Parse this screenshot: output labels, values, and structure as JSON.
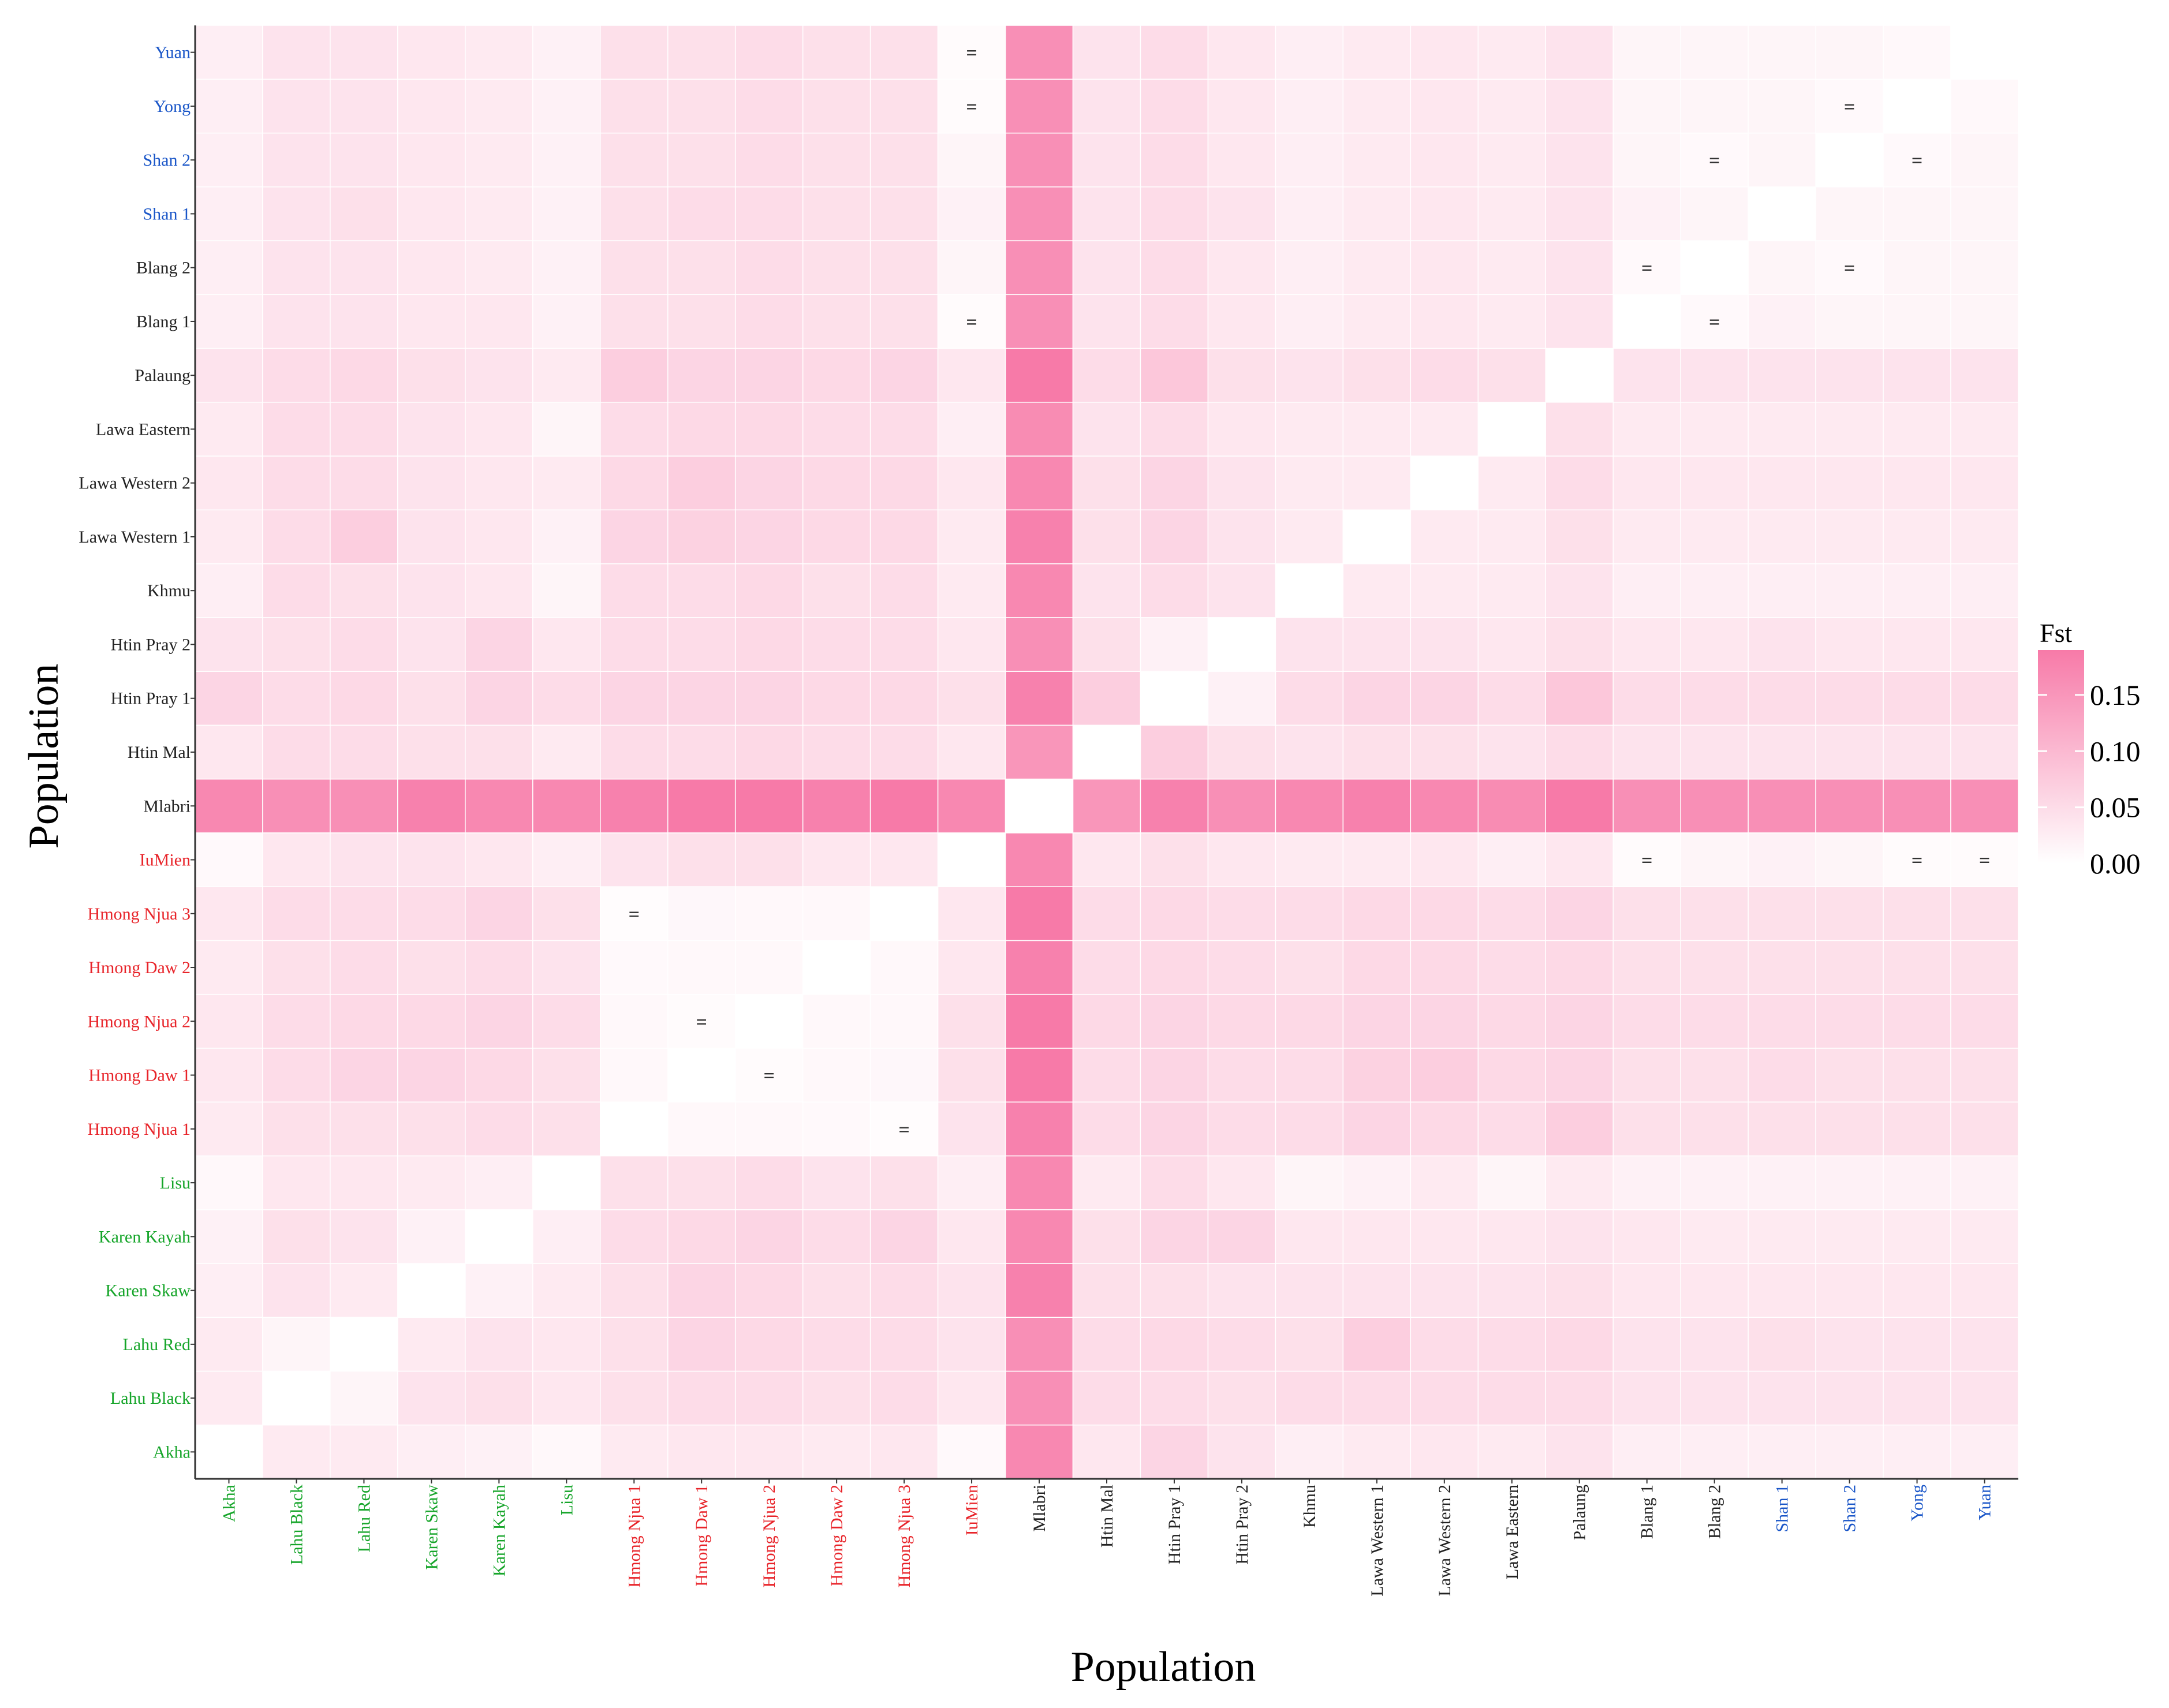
{
  "chart_data": {
    "type": "heatmap",
    "title": "",
    "xlabel": "Population",
    "ylabel": "Population",
    "populations": [
      "Akha",
      "Lahu Black",
      "Lahu Red",
      "Karen Skaw",
      "Karen Kayah",
      "Lisu",
      "Hmong Njua 1",
      "Hmong Daw 1",
      "Hmong Njua 2",
      "Hmong Daw 2",
      "Hmong Njua 3",
      "IuMien",
      "Mlabri",
      "Htin Mal",
      "Htin Pray 1",
      "Htin Pray 2",
      "Khmu",
      "Lawa Western 1",
      "Lawa Western 2",
      "Lawa Eastern",
      "Palaung",
      "Blang 1",
      "Blang 2",
      "Shan 1",
      "Shan 2",
      "Yong",
      "Yuan"
    ],
    "population_groups": [
      "green",
      "green",
      "green",
      "green",
      "green",
      "green",
      "red",
      "red",
      "red",
      "red",
      "red",
      "red",
      "black",
      "black",
      "black",
      "black",
      "black",
      "black",
      "black",
      "black",
      "black",
      "black",
      "black",
      "blue",
      "blue",
      "blue",
      "blue"
    ],
    "group_colors": {
      "green": "#16a52a",
      "red": "#e8242a",
      "black": "#222222",
      "blue": "#1a56c8"
    },
    "colorscale": {
      "low": "#ffffff",
      "high": "#f77aa8",
      "range": [
        0,
        0.19
      ]
    },
    "legend": {
      "title": "Fst",
      "ticks": [
        "0.15",
        "0.10",
        "0.05",
        "0.00"
      ],
      "tick_values": [
        0.15,
        0.1,
        0.05,
        0.0
      ]
    },
    "equal_marker": "=",
    "equal_pairs": [
      [
        "Hmong Njua 1",
        "Hmong Njua 3"
      ],
      [
        "Hmong Daw 1",
        "Hmong Njua 2"
      ],
      [
        "Hmong Njua 2",
        "Hmong Daw 1"
      ],
      [
        "Hmong Njua 3",
        "Hmong Njua 1"
      ],
      [
        "IuMien",
        "Yuan"
      ],
      [
        "IuMien",
        "Yong"
      ],
      [
        "IuMien",
        "Blang 1"
      ],
      [
        "Blang 1",
        "Blang 2"
      ],
      [
        "Blang 1",
        "IuMien"
      ],
      [
        "Blang 2",
        "Shan 2"
      ],
      [
        "Blang 2",
        "Blang 1"
      ],
      [
        "Shan 2",
        "Yong"
      ],
      [
        "Shan 2",
        "Blang 2"
      ],
      [
        "Yong",
        "Shan 2"
      ],
      [
        "Yong",
        "IuMien"
      ],
      [
        "Yuan",
        "IuMien"
      ]
    ],
    "matrix": [
      [
        0.0,
        0.03,
        0.03,
        0.025,
        0.02,
        0.01,
        0.03,
        0.035,
        0.035,
        0.03,
        0.035,
        0.008,
        0.17,
        0.035,
        0.06,
        0.04,
        0.025,
        0.03,
        0.035,
        0.03,
        0.04,
        0.025,
        0.025,
        0.025,
        0.025,
        0.025,
        0.025
      ],
      [
        0.03,
        0.0,
        0.015,
        0.04,
        0.045,
        0.035,
        0.045,
        0.05,
        0.05,
        0.045,
        0.05,
        0.035,
        0.16,
        0.05,
        0.05,
        0.045,
        0.05,
        0.05,
        0.05,
        0.05,
        0.05,
        0.04,
        0.04,
        0.04,
        0.04,
        0.04,
        0.04
      ],
      [
        0.03,
        0.015,
        0.0,
        0.03,
        0.04,
        0.035,
        0.045,
        0.06,
        0.055,
        0.05,
        0.05,
        0.04,
        0.16,
        0.05,
        0.055,
        0.05,
        0.045,
        0.07,
        0.05,
        0.05,
        0.055,
        0.04,
        0.04,
        0.045,
        0.04,
        0.04,
        0.04
      ],
      [
        0.025,
        0.04,
        0.03,
        0.0,
        0.02,
        0.03,
        0.045,
        0.06,
        0.055,
        0.045,
        0.05,
        0.04,
        0.18,
        0.045,
        0.045,
        0.04,
        0.04,
        0.04,
        0.04,
        0.04,
        0.045,
        0.035,
        0.035,
        0.035,
        0.035,
        0.035,
        0.035
      ],
      [
        0.02,
        0.045,
        0.04,
        0.02,
        0.0,
        0.025,
        0.05,
        0.055,
        0.06,
        0.05,
        0.06,
        0.035,
        0.17,
        0.045,
        0.06,
        0.06,
        0.035,
        0.035,
        0.035,
        0.035,
        0.04,
        0.035,
        0.03,
        0.03,
        0.03,
        0.03,
        0.03
      ],
      [
        0.01,
        0.035,
        0.035,
        0.03,
        0.025,
        0.0,
        0.045,
        0.045,
        0.05,
        0.04,
        0.045,
        0.025,
        0.17,
        0.03,
        0.05,
        0.035,
        0.015,
        0.02,
        0.03,
        0.015,
        0.03,
        0.02,
        0.02,
        0.02,
        0.02,
        0.02,
        0.02
      ],
      [
        0.03,
        0.045,
        0.045,
        0.045,
        0.05,
        0.045,
        0.0,
        0.01,
        0.01,
        0.008,
        0.005,
        0.04,
        0.18,
        0.05,
        0.06,
        0.05,
        0.05,
        0.06,
        0.055,
        0.05,
        0.07,
        0.045,
        0.045,
        0.045,
        0.045,
        0.045,
        0.045
      ],
      [
        0.035,
        0.05,
        0.06,
        0.06,
        0.055,
        0.045,
        0.01,
        0.0,
        0.006,
        0.01,
        0.012,
        0.045,
        0.19,
        0.05,
        0.06,
        0.05,
        0.05,
        0.065,
        0.07,
        0.055,
        0.06,
        0.045,
        0.045,
        0.05,
        0.045,
        0.045,
        0.045
      ],
      [
        0.035,
        0.05,
        0.055,
        0.055,
        0.06,
        0.05,
        0.01,
        0.006,
        0.0,
        0.01,
        0.01,
        0.045,
        0.19,
        0.055,
        0.06,
        0.055,
        0.055,
        0.06,
        0.06,
        0.055,
        0.06,
        0.05,
        0.05,
        0.05,
        0.05,
        0.05,
        0.05
      ],
      [
        0.03,
        0.045,
        0.05,
        0.045,
        0.05,
        0.04,
        0.008,
        0.01,
        0.01,
        0.0,
        0.01,
        0.035,
        0.18,
        0.05,
        0.055,
        0.05,
        0.045,
        0.055,
        0.055,
        0.05,
        0.055,
        0.045,
        0.045,
        0.045,
        0.045,
        0.045,
        0.045
      ],
      [
        0.035,
        0.05,
        0.05,
        0.05,
        0.06,
        0.045,
        0.005,
        0.012,
        0.01,
        0.01,
        0.0,
        0.035,
        0.19,
        0.05,
        0.055,
        0.05,
        0.05,
        0.055,
        0.055,
        0.05,
        0.06,
        0.045,
        0.045,
        0.045,
        0.045,
        0.045,
        0.045
      ],
      [
        0.008,
        0.035,
        0.04,
        0.04,
        0.035,
        0.025,
        0.04,
        0.045,
        0.045,
        0.035,
        0.035,
        0.0,
        0.17,
        0.035,
        0.045,
        0.035,
        0.03,
        0.03,
        0.035,
        0.025,
        0.035,
        0.006,
        0.015,
        0.02,
        0.015,
        0.006,
        0.006
      ],
      [
        0.17,
        0.16,
        0.16,
        0.18,
        0.17,
        0.17,
        0.18,
        0.19,
        0.19,
        0.18,
        0.19,
        0.17,
        0.0,
        0.15,
        0.18,
        0.16,
        0.17,
        0.18,
        0.17,
        0.165,
        0.19,
        0.16,
        0.16,
        0.16,
        0.16,
        0.16,
        0.16
      ],
      [
        0.035,
        0.05,
        0.05,
        0.045,
        0.045,
        0.03,
        0.05,
        0.05,
        0.055,
        0.05,
        0.05,
        0.035,
        0.15,
        0.0,
        0.07,
        0.045,
        0.04,
        0.045,
        0.045,
        0.04,
        0.05,
        0.04,
        0.04,
        0.04,
        0.04,
        0.04,
        0.04
      ],
      [
        0.06,
        0.05,
        0.055,
        0.045,
        0.06,
        0.05,
        0.06,
        0.06,
        0.06,
        0.055,
        0.055,
        0.045,
        0.18,
        0.07,
        0.0,
        0.02,
        0.05,
        0.06,
        0.06,
        0.05,
        0.08,
        0.05,
        0.05,
        0.05,
        0.05,
        0.05,
        0.05
      ],
      [
        0.04,
        0.045,
        0.05,
        0.04,
        0.06,
        0.035,
        0.05,
        0.05,
        0.055,
        0.05,
        0.05,
        0.035,
        0.16,
        0.045,
        0.02,
        0.0,
        0.04,
        0.04,
        0.04,
        0.035,
        0.045,
        0.035,
        0.035,
        0.04,
        0.035,
        0.035,
        0.035
      ],
      [
        0.025,
        0.05,
        0.045,
        0.04,
        0.035,
        0.015,
        0.05,
        0.05,
        0.055,
        0.045,
        0.05,
        0.03,
        0.17,
        0.04,
        0.05,
        0.04,
        0.0,
        0.03,
        0.03,
        0.03,
        0.04,
        0.025,
        0.025,
        0.025,
        0.025,
        0.025,
        0.025
      ],
      [
        0.03,
        0.05,
        0.07,
        0.04,
        0.035,
        0.02,
        0.06,
        0.065,
        0.06,
        0.055,
        0.055,
        0.03,
        0.18,
        0.045,
        0.06,
        0.04,
        0.03,
        0.0,
        0.03,
        0.03,
        0.045,
        0.03,
        0.03,
        0.03,
        0.03,
        0.03,
        0.03
      ],
      [
        0.035,
        0.05,
        0.05,
        0.04,
        0.035,
        0.03,
        0.055,
        0.07,
        0.06,
        0.055,
        0.055,
        0.035,
        0.17,
        0.045,
        0.06,
        0.04,
        0.03,
        0.03,
        0.0,
        0.03,
        0.05,
        0.035,
        0.035,
        0.035,
        0.035,
        0.035,
        0.035
      ],
      [
        0.03,
        0.05,
        0.05,
        0.04,
        0.035,
        0.015,
        0.05,
        0.055,
        0.055,
        0.05,
        0.05,
        0.025,
        0.165,
        0.04,
        0.05,
        0.035,
        0.03,
        0.03,
        0.03,
        0.0,
        0.045,
        0.03,
        0.03,
        0.03,
        0.03,
        0.03,
        0.03
      ],
      [
        0.04,
        0.05,
        0.055,
        0.045,
        0.04,
        0.03,
        0.07,
        0.06,
        0.06,
        0.055,
        0.06,
        0.035,
        0.19,
        0.05,
        0.08,
        0.045,
        0.04,
        0.045,
        0.05,
        0.045,
        0.0,
        0.04,
        0.04,
        0.04,
        0.04,
        0.04,
        0.04
      ],
      [
        0.025,
        0.04,
        0.04,
        0.035,
        0.035,
        0.02,
        0.045,
        0.045,
        0.05,
        0.045,
        0.045,
        0.006,
        0.16,
        0.04,
        0.05,
        0.035,
        0.025,
        0.03,
        0.035,
        0.03,
        0.04,
        0.0,
        0.008,
        0.02,
        0.015,
        0.015,
        0.015
      ],
      [
        0.025,
        0.04,
        0.04,
        0.035,
        0.03,
        0.02,
        0.045,
        0.045,
        0.05,
        0.045,
        0.045,
        0.015,
        0.16,
        0.04,
        0.05,
        0.035,
        0.025,
        0.03,
        0.035,
        0.03,
        0.04,
        0.008,
        0.0,
        0.015,
        0.008,
        0.015,
        0.015
      ],
      [
        0.025,
        0.04,
        0.045,
        0.035,
        0.03,
        0.02,
        0.045,
        0.05,
        0.05,
        0.045,
        0.045,
        0.02,
        0.16,
        0.04,
        0.05,
        0.04,
        0.025,
        0.03,
        0.035,
        0.03,
        0.04,
        0.02,
        0.015,
        0.0,
        0.015,
        0.015,
        0.015
      ],
      [
        0.025,
        0.04,
        0.04,
        0.035,
        0.03,
        0.02,
        0.045,
        0.045,
        0.05,
        0.045,
        0.045,
        0.015,
        0.16,
        0.04,
        0.05,
        0.035,
        0.025,
        0.03,
        0.035,
        0.03,
        0.04,
        0.015,
        0.008,
        0.015,
        0.0,
        0.008,
        0.015
      ],
      [
        0.025,
        0.04,
        0.04,
        0.035,
        0.03,
        0.02,
        0.045,
        0.045,
        0.05,
        0.045,
        0.045,
        0.006,
        0.16,
        0.04,
        0.05,
        0.035,
        0.025,
        0.03,
        0.035,
        0.03,
        0.04,
        0.015,
        0.015,
        0.015,
        0.008,
        0.0,
        0.01
      ],
      [
        0.025,
        0.04,
        0.04,
        0.035,
        0.03,
        0.02,
        0.045,
        0.045,
        0.05,
        0.045,
        0.045,
        0.006,
        0.16,
        0.04,
        0.05,
        0.035,
        0.025,
        0.03,
        0.035,
        0.03,
        0.04,
        0.015,
        0.015,
        0.015,
        0.015,
        0.01,
        0.0
      ]
    ]
  }
}
